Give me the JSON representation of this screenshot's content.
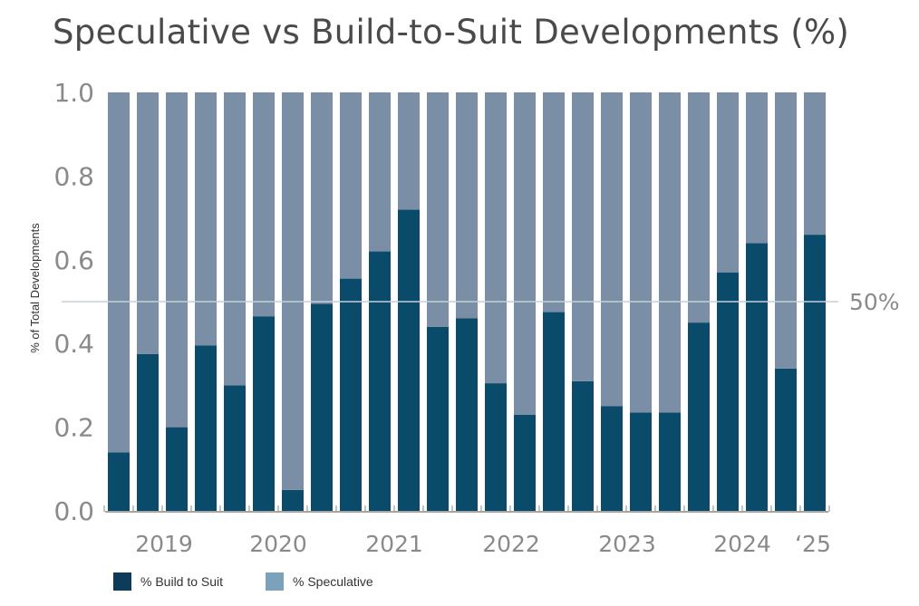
{
  "chart_data": {
    "type": "bar",
    "stacked": true,
    "title": "Speculative vs Build-to-Suit Developments (%)",
    "ylabel": "% of Total Developments",
    "ylim": [
      0,
      1.0
    ],
    "yticks": [
      "0.0",
      "0.2",
      "0.4",
      "0.6",
      "0.8",
      "1.0"
    ],
    "x_group_labels": [
      "2019",
      "2020",
      "2021",
      "2022",
      "2023",
      "2024",
      "‘25"
    ],
    "reference_line": {
      "value": 0.5,
      "label": "50%"
    },
    "grid": false,
    "legend_position": "bottom-left",
    "series": [
      {
        "name": "% Build to Suit",
        "color": "#0a4a6b",
        "values": [
          0.14,
          0.375,
          0.2,
          0.395,
          0.3,
          0.465,
          0.05,
          0.495,
          0.555,
          0.62,
          0.72,
          0.44,
          0.46,
          0.305,
          0.23,
          0.475,
          0.31,
          0.25,
          0.235,
          0.235,
          0.45,
          0.57,
          0.64,
          0.34,
          0.66
        ]
      },
      {
        "name": "% Speculative",
        "color": "#7a8fa6",
        "values": [
          0.86,
          0.625,
          0.8,
          0.605,
          0.7,
          0.535,
          0.95,
          0.505,
          0.445,
          0.38,
          0.28,
          0.56,
          0.54,
          0.695,
          0.77,
          0.525,
          0.69,
          0.75,
          0.765,
          0.765,
          0.55,
          0.43,
          0.36,
          0.66,
          0.34
        ]
      }
    ],
    "legend_swatch_colors": [
      "#0d3b5a",
      "#7aa3bb"
    ]
  }
}
